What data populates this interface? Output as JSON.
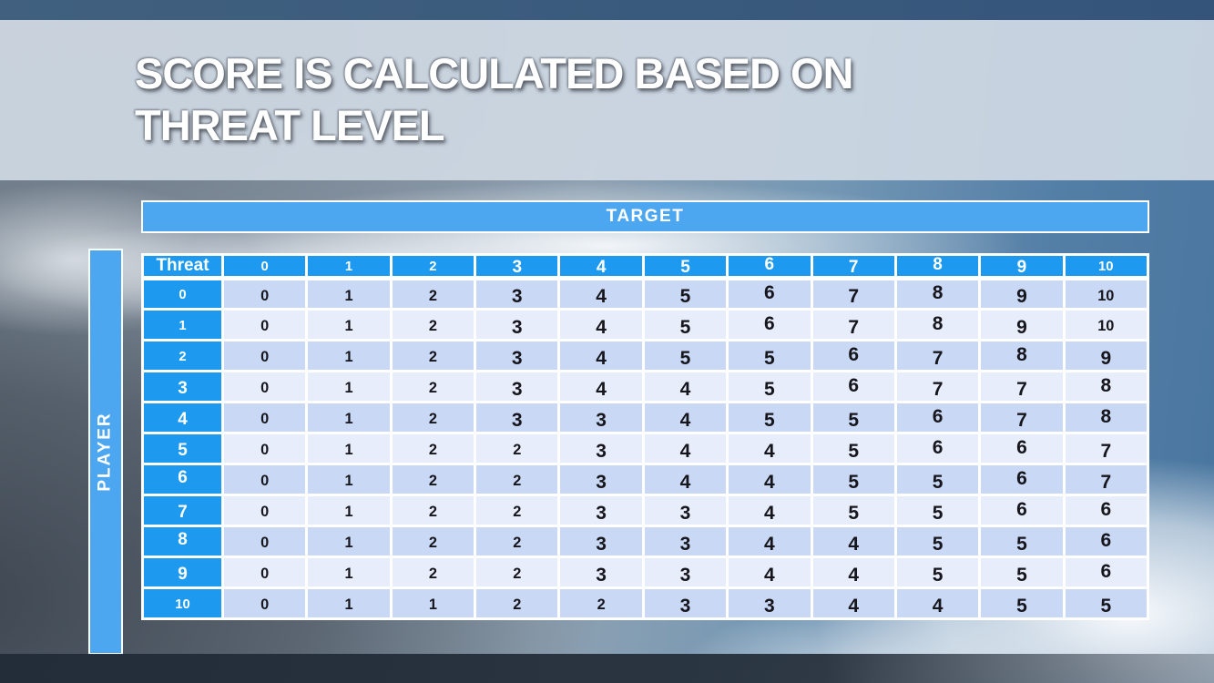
{
  "slide": {
    "title_line1": "SCORE IS CALCULATED BASED ON",
    "title_line2": "THREAT LEVEL"
  },
  "matrix": {
    "target_label": "TARGET",
    "player_label": "PLAYER",
    "corner_label": "Threat",
    "col_headers": [
      "0",
      "1",
      "2",
      "3",
      "4",
      "5",
      "6",
      "7",
      "8",
      "9",
      "10"
    ],
    "row_headers": [
      "0",
      "1",
      "2",
      "3",
      "4",
      "5",
      "6",
      "7",
      "8",
      "9",
      "10"
    ],
    "rows": [
      [
        0,
        1,
        2,
        3,
        4,
        5,
        6,
        7,
        8,
        9,
        10
      ],
      [
        0,
        1,
        2,
        3,
        4,
        5,
        6,
        7,
        8,
        9,
        10
      ],
      [
        0,
        1,
        2,
        3,
        4,
        5,
        5,
        6,
        7,
        8,
        9
      ],
      [
        0,
        1,
        2,
        3,
        4,
        4,
        5,
        6,
        7,
        7,
        8
      ],
      [
        0,
        1,
        2,
        3,
        3,
        4,
        5,
        5,
        6,
        7,
        8
      ],
      [
        0,
        1,
        2,
        2,
        3,
        4,
        4,
        5,
        6,
        6,
        7
      ],
      [
        0,
        1,
        2,
        2,
        3,
        4,
        4,
        5,
        5,
        6,
        7
      ],
      [
        0,
        1,
        2,
        2,
        3,
        3,
        4,
        5,
        5,
        6,
        6
      ],
      [
        0,
        1,
        2,
        2,
        3,
        3,
        4,
        4,
        5,
        5,
        6
      ],
      [
        0,
        1,
        2,
        2,
        3,
        3,
        4,
        4,
        5,
        5,
        6
      ],
      [
        0,
        1,
        1,
        2,
        2,
        3,
        3,
        4,
        4,
        5,
        5
      ]
    ]
  },
  "colors": {
    "header_blue": "#1d9aef",
    "band_blue": "#4da7f0",
    "row_dark": "#c9d8f5",
    "row_light": "#e7edfb",
    "cell_text": "#16161c",
    "grid_white": "#ffffff",
    "top_bar": "#3d5a7c",
    "title_band": "#cfd8e3",
    "title_text": "#ffffff",
    "bottom_bar": "#2b3845"
  }
}
